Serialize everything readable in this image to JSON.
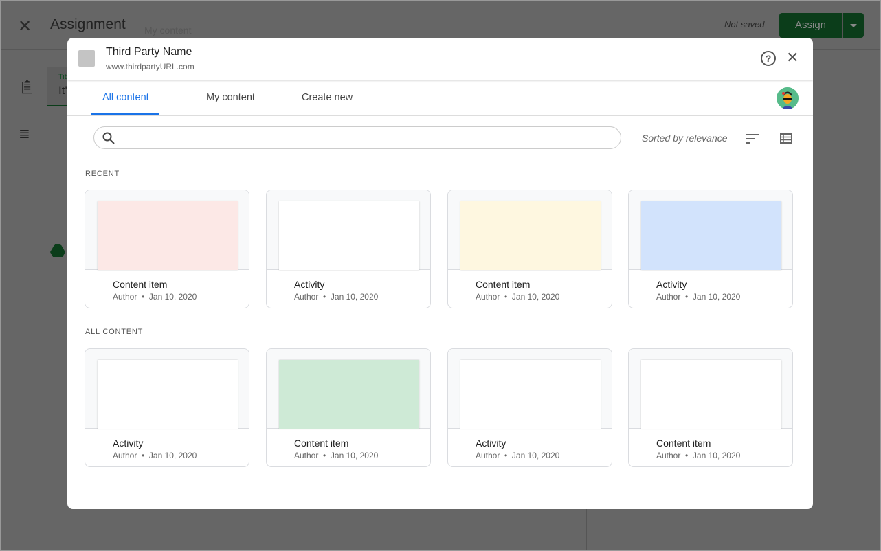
{
  "app": {
    "close_icon": "close-icon",
    "title": "Assignment",
    "ghost_text": "My content",
    "status": "Not saved",
    "assign_label": "Assign",
    "field_label": "Tit",
    "field_value": "It'",
    "accent": "#137333"
  },
  "modal": {
    "provider_name": "Third Party Name",
    "provider_url": "www.thirdpartyURL.com",
    "help": "?",
    "close": "✕",
    "tabs": [
      {
        "label": "All content",
        "active": true
      },
      {
        "label": "My content"
      },
      {
        "label": "Create new"
      }
    ],
    "search": {
      "value": "",
      "placeholder": ""
    },
    "sort_label": "Sorted by relevance",
    "sections": [
      {
        "title": "RECENT",
        "items": [
          {
            "title": "Content item",
            "author": "Author",
            "date": "Jan 10, 2020",
            "color": "#fce8e6"
          },
          {
            "title": "Activity",
            "author": "Author",
            "date": "Jan 10, 2020",
            "color": "#ffffff"
          },
          {
            "title": "Content item",
            "author": "Author",
            "date": "Jan 10, 2020",
            "color": "#fef7e0"
          },
          {
            "title": "Activity",
            "author": "Author",
            "date": "Jan 10, 2020",
            "color": "#d2e3fc"
          }
        ]
      },
      {
        "title": "ALL CONTENT",
        "items": [
          {
            "title": "Activity",
            "author": "Author",
            "date": "Jan 10, 2020",
            "color": "#ffffff"
          },
          {
            "title": "Content item",
            "author": "Author",
            "date": "Jan 10, 2020",
            "color": "#ceead6"
          },
          {
            "title": "Activity",
            "author": "Author",
            "date": "Jan 10, 2020",
            "color": "#ffffff"
          },
          {
            "title": "Content item",
            "author": "Author",
            "date": "Jan 10, 2020",
            "color": "#ffffff"
          }
        ]
      }
    ]
  }
}
